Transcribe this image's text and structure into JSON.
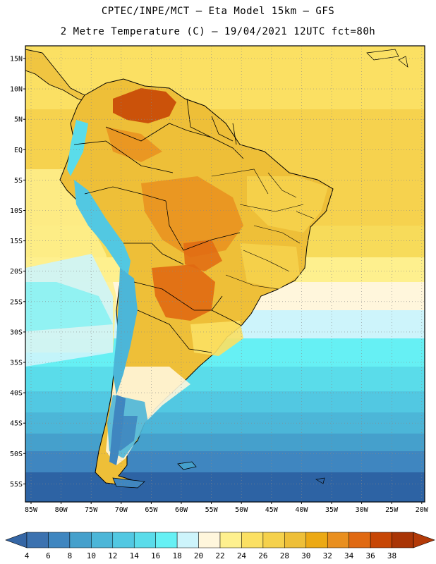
{
  "header": {
    "line1": "CPTEC/INPE/MCT –  Eta Model 15km – GFS",
    "line2": "2 Metre Temperature (C) – 19/04/2021 12UTC fct=80h"
  },
  "map": {
    "lat_labels": [
      "15N",
      "10N",
      "5N",
      "EQ",
      "5S",
      "10S",
      "15S",
      "20S",
      "25S",
      "30S",
      "35S",
      "40S",
      "45S",
      "50S",
      "55S"
    ],
    "lon_labels": [
      "85W",
      "80W",
      "75W",
      "70W",
      "65W",
      "60W",
      "55W",
      "50W",
      "45W",
      "40W",
      "35W",
      "30W",
      "25W",
      "20W"
    ]
  },
  "colorbar": {
    "labels": [
      "4",
      "6",
      "8",
      "10",
      "12",
      "14",
      "16",
      "18",
      "20",
      "22",
      "24",
      "26",
      "28",
      "30",
      "32",
      "34",
      "36",
      "38"
    ],
    "colors": [
      "#3c72b0",
      "#3f86c0",
      "#45a0cc",
      "#4cb6d8",
      "#52c8e2",
      "#5adcea",
      "#66f0f4",
      "#cdf4fb",
      "#fff6dc",
      "#fef08e",
      "#fbe063",
      "#f5d14c",
      "#eebf38",
      "#eca914",
      "#e98f1f",
      "#e06912",
      "#c74605",
      "#a93506"
    ],
    "left_color": "#3566a5",
    "right_color": "#b33a08"
  },
  "colors": {
    "ocean_south": "#2a5fa0",
    "ocean_mid": "#4cb6d8",
    "ocean_warm": "#f5d14c",
    "land_hot": "#e98f1f",
    "andes": "#5adcea"
  }
}
